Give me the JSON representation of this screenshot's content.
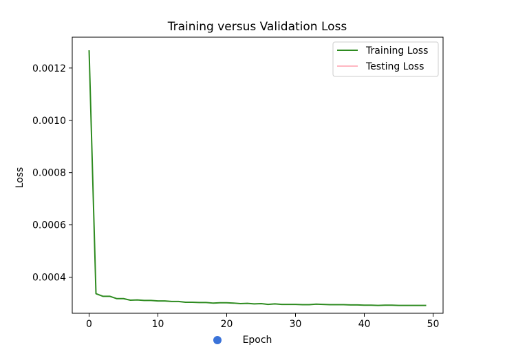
{
  "chart_data": {
    "type": "line",
    "title": "Training versus Validation Loss",
    "xlabel": "Epoch",
    "ylabel": "Loss",
    "xlim": [
      -2.45,
      51.45
    ],
    "ylim": [
      0.000262,
      0.001318
    ],
    "xticks": [
      0,
      10,
      20,
      30,
      40,
      50
    ],
    "xtick_labels": [
      "0",
      "10",
      "20",
      "30",
      "40",
      "50"
    ],
    "yticks": [
      0.0004,
      0.0006,
      0.0008,
      0.001,
      0.0012
    ],
    "ytick_labels": [
      "0.0004",
      "0.0006",
      "0.0008",
      "0.0010",
      "0.0012"
    ],
    "grid": false,
    "legend_position": "upper right",
    "series": [
      {
        "name": "Training Loss",
        "color": "#2e8b20",
        "x": [
          0,
          1,
          2,
          3,
          4,
          5,
          6,
          7,
          8,
          9,
          10,
          11,
          12,
          13,
          14,
          15,
          16,
          17,
          18,
          19,
          20,
          21,
          22,
          23,
          24,
          25,
          26,
          27,
          28,
          29,
          30,
          31,
          32,
          33,
          34,
          35,
          36,
          37,
          38,
          39,
          40,
          41,
          42,
          43,
          44,
          45,
          46,
          47,
          48,
          49
        ],
        "y": [
          0.001268,
          0.000337,
          0.000327,
          0.000327,
          0.000318,
          0.000318,
          0.000312,
          0.000313,
          0.000311,
          0.000311,
          0.000309,
          0.000309,
          0.000307,
          0.000307,
          0.000304,
          0.000304,
          0.000303,
          0.000303,
          0.000301,
          0.000302,
          0.000302,
          0.000301,
          0.000299,
          0.0003,
          0.000298,
          0.000299,
          0.000296,
          0.000298,
          0.000296,
          0.000296,
          0.000296,
          0.000295,
          0.000295,
          0.000297,
          0.000296,
          0.000295,
          0.000295,
          0.000295,
          0.000294,
          0.000294,
          0.000293,
          0.000293,
          0.000292,
          0.000293,
          0.000293,
          0.000292,
          0.000292,
          0.000292,
          0.000292,
          0.000292
        ]
      },
      {
        "name": "Testing Loss",
        "color": "#ffb6c1",
        "x": [],
        "y": []
      }
    ]
  },
  "overlay": {
    "marker_color": "#3b73d9"
  }
}
